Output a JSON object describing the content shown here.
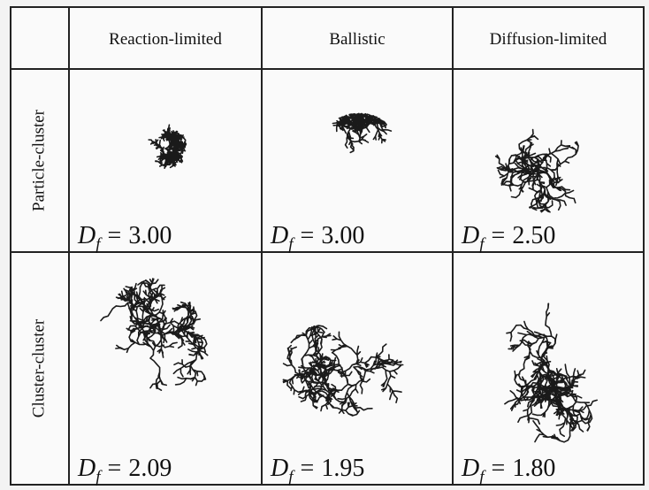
{
  "table": {
    "columns": [
      "Reaction-limited",
      "Ballistic",
      "Diffusion-limited"
    ],
    "symbol": "D",
    "subscript": "f",
    "relation": "=",
    "rows": [
      {
        "label": "Particle-cluster",
        "cells": [
          "3.00",
          "3.00",
          "2.50"
        ]
      },
      {
        "label": "Cluster-cluster",
        "cells": [
          "2.09",
          "1.95",
          "1.80"
        ]
      }
    ]
  }
}
